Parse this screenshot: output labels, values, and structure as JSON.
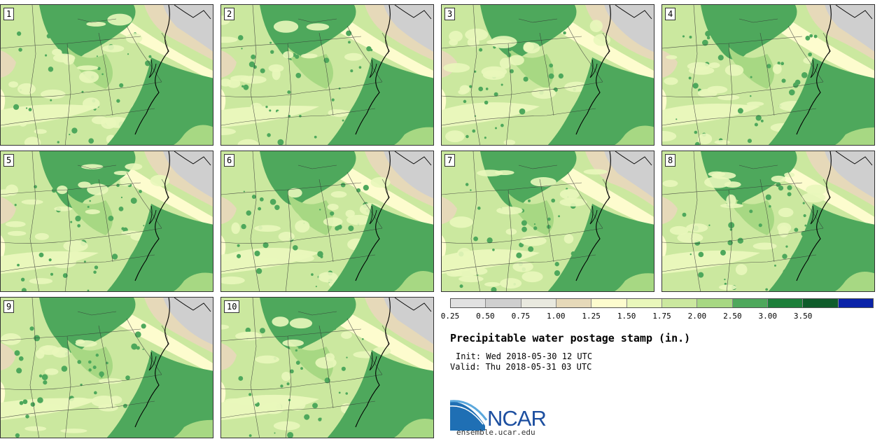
{
  "members": [
    "1",
    "2",
    "3",
    "4",
    "5",
    "6",
    "7",
    "8",
    "9",
    "10"
  ],
  "colorbar": {
    "levels": [
      "0.25",
      "0.50",
      "0.75",
      "1.00",
      "1.25",
      "1.50",
      "1.75",
      "2.00",
      "2.50",
      "3.00",
      "3.50"
    ],
    "colors": [
      "#e1e1e1",
      "#cfcfcf",
      "#e9e9df",
      "#e6d9b9",
      "#fdfcce",
      "#e9f7bb",
      "#cbe89f",
      "#a7d883",
      "#4ea85c",
      "#1d7f3a",
      "#0f5c2b",
      "#0a23a8"
    ]
  },
  "title": "Precipitable water postage stamp (in.)",
  "init": "Init: Wed 2018-05-30 12 UTC",
  "valid": "Valid: Thu 2018-05-31 03 UTC",
  "logo": {
    "name": "NCAR",
    "icon": "ncar-logo-icon"
  },
  "url": "ensemble.ucar.edu"
}
